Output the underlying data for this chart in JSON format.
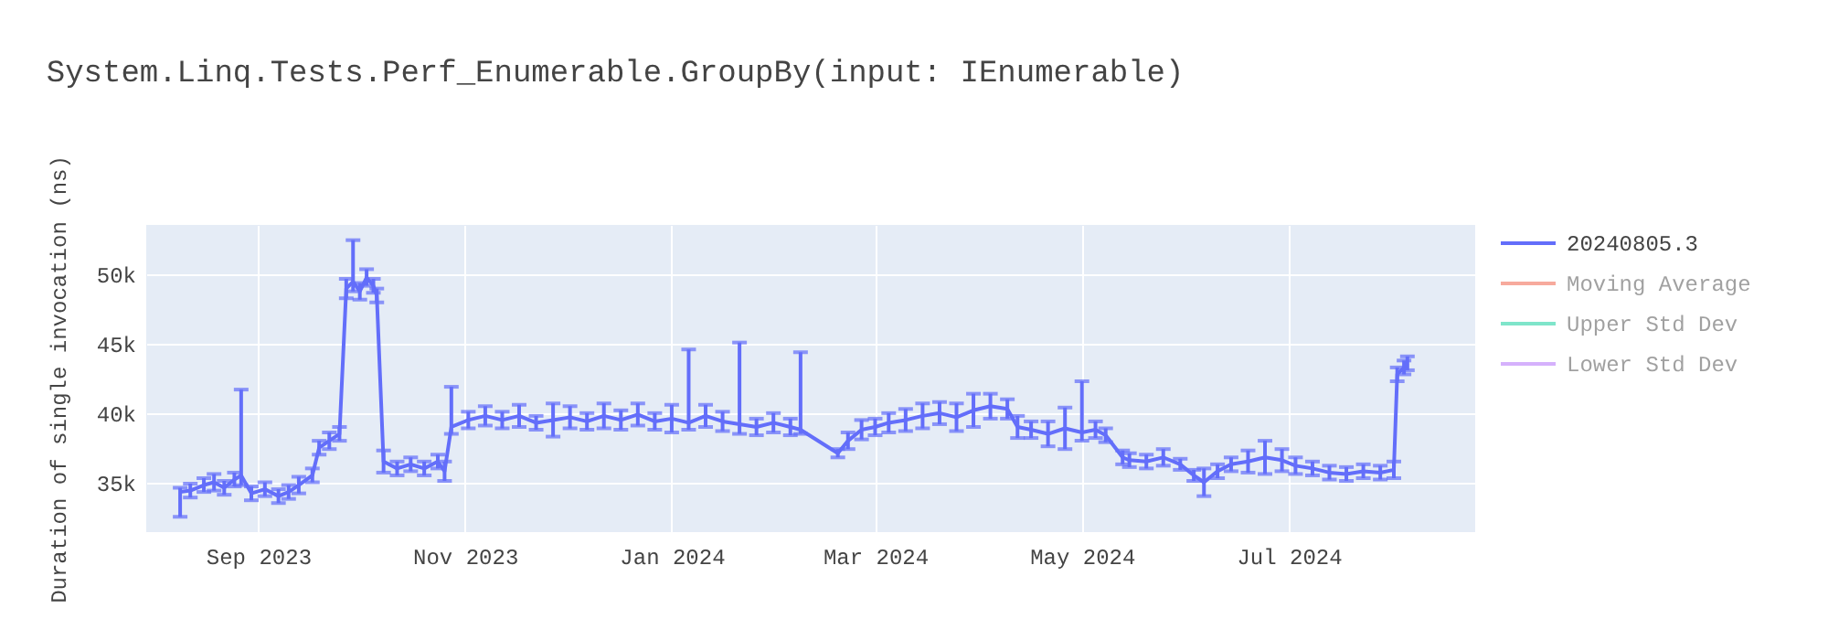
{
  "chart_data": {
    "type": "line",
    "title": "System.Linq.Tests.Perf_Enumerable.GroupBy(input: IEnumerable)",
    "ylabel": "Duration of single invocation (ns)",
    "x": [
      "2023-08-09",
      "2023-08-12",
      "2023-08-16",
      "2023-08-19",
      "2023-08-22",
      "2023-08-25",
      "2023-08-27",
      "2023-08-30",
      "2023-09-03",
      "2023-09-07",
      "2023-09-10",
      "2023-09-13",
      "2023-09-17",
      "2023-09-19",
      "2023-09-22",
      "2023-09-25",
      "2023-09-27",
      "2023-09-29",
      "2023-10-01",
      "2023-10-03",
      "2023-10-05",
      "2023-10-06",
      "2023-10-08",
      "2023-10-12",
      "2023-10-16",
      "2023-10-20",
      "2023-10-24",
      "2023-10-26",
      "2023-10-28",
      "2023-11-02",
      "2023-11-07",
      "2023-11-12",
      "2023-11-17",
      "2023-11-22",
      "2023-11-27",
      "2023-12-02",
      "2023-12-07",
      "2023-12-12",
      "2023-12-17",
      "2023-12-22",
      "2023-12-27",
      "2024-01-01",
      "2024-01-06",
      "2024-01-11",
      "2024-01-16",
      "2024-01-21",
      "2024-01-26",
      "2024-01-31",
      "2024-02-05",
      "2024-02-08",
      "2024-02-19",
      "2024-02-22",
      "2024-02-26",
      "2024-03-01",
      "2024-03-05",
      "2024-03-10",
      "2024-03-15",
      "2024-03-20",
      "2024-03-25",
      "2024-03-30",
      "2024-04-04",
      "2024-04-09",
      "2024-04-12",
      "2024-04-16",
      "2024-04-21",
      "2024-04-26",
      "2024-05-01",
      "2024-05-05",
      "2024-05-08",
      "2024-05-13",
      "2024-05-15",
      "2024-05-20",
      "2024-05-25",
      "2024-05-30",
      "2024-06-03",
      "2024-06-06",
      "2024-06-10",
      "2024-06-14",
      "2024-06-19",
      "2024-06-24",
      "2024-06-29",
      "2024-07-03",
      "2024-07-08",
      "2024-07-13",
      "2024-07-18",
      "2024-07-23",
      "2024-07-28",
      "2024-08-01",
      "2024-08-02",
      "2024-08-04",
      "2024-08-05"
    ],
    "series": [
      {
        "name": "20240805.3",
        "color": "#636efa",
        "values": [
          34300,
          34400,
          34800,
          35000,
          34600,
          35200,
          35500,
          34200,
          34500,
          34000,
          34300,
          34800,
          35500,
          37500,
          38000,
          38500,
          49000,
          49500,
          48800,
          49800,
          49200,
          48500,
          36500,
          36000,
          36300,
          36000,
          36500,
          35800,
          39000,
          39500,
          39800,
          39500,
          39800,
          39300,
          39500,
          39700,
          39400,
          39800,
          39500,
          39900,
          39400,
          39600,
          39300,
          39800,
          39400,
          39200,
          39000,
          39300,
          39000,
          38800,
          37100,
          38000,
          38800,
          39000,
          39300,
          39500,
          39800,
          40000,
          39700,
          40200,
          40500,
          40300,
          39000,
          38800,
          38500,
          38900,
          38600,
          38800,
          38400,
          36800,
          36600,
          36500,
          36800,
          36300,
          35500,
          35000,
          35800,
          36300,
          36500,
          36800,
          36600,
          36200,
          36000,
          35700,
          35600,
          35800,
          35700,
          35900,
          42800,
          43300,
          43600
        ],
        "errors": [
          [
            32500,
            34600
          ],
          500,
          500,
          600,
          500,
          500,
          [
            34800,
            41700
          ],
          500,
          500,
          500,
          500,
          600,
          500,
          500,
          600,
          500,
          700,
          [
            48800,
            52500
          ],
          600,
          600,
          500,
          500,
          800,
          500,
          500,
          500,
          500,
          700,
          [
            38500,
            41900
          ],
          600,
          700,
          600,
          800,
          500,
          1200,
          800,
          600,
          900,
          700,
          800,
          600,
          1000,
          [
            38800,
            44600
          ],
          800,
          700,
          [
            38500,
            45100
          ],
          600,
          700,
          600,
          [
            38500,
            44400
          ],
          300,
          600,
          700,
          600,
          700,
          800,
          900,
          800,
          1000,
          1200,
          900,
          700,
          800,
          600,
          900,
          1500,
          [
            38000,
            42300
          ],
          600,
          500,
          500,
          500,
          500,
          600,
          400,
          400,
          1000,
          500,
          500,
          800,
          1200,
          800,
          600,
          500,
          500,
          500,
          500,
          500,
          600,
          500,
          500,
          500
        ],
        "marker": "none"
      },
      {
        "name": "Moving Average",
        "color": "#ef553b",
        "values": [
          null,
          null,
          null,
          null,
          null,
          null,
          null,
          null,
          null,
          null,
          null,
          null,
          null,
          null,
          null,
          null,
          null,
          null,
          null,
          null,
          null,
          null,
          null,
          null,
          null,
          null,
          null,
          null,
          null,
          null,
          null,
          null,
          null,
          null,
          null,
          null,
          null,
          null,
          null,
          null,
          null,
          null,
          null,
          null,
          null,
          null,
          null,
          null,
          null,
          null,
          null,
          null,
          null,
          null,
          null,
          null,
          null,
          null,
          null,
          null,
          null,
          null,
          null,
          null,
          null,
          null,
          null,
          null,
          null,
          null,
          null,
          null,
          null,
          null,
          null,
          null,
          null,
          null,
          null,
          null,
          null,
          null,
          null,
          null,
          null,
          null,
          null,
          null,
          null,
          null,
          null
        ]
      },
      {
        "name": "Upper Std Dev",
        "color": "#00cc96",
        "values": [
          null,
          null,
          null,
          null,
          null,
          null,
          null,
          null,
          null,
          null,
          null,
          null,
          null,
          null,
          null,
          null,
          null,
          null,
          null,
          null,
          null,
          null,
          null,
          null,
          null,
          null,
          null,
          null,
          null,
          null,
          null,
          null,
          null,
          null,
          null,
          null,
          null,
          null,
          null,
          null,
          null,
          null,
          null,
          null,
          null,
          null,
          null,
          null,
          null,
          null,
          null,
          null,
          null,
          null,
          null,
          null,
          null,
          null,
          null,
          null,
          null,
          null,
          null,
          null,
          null,
          null,
          null,
          null,
          null,
          null,
          null,
          null,
          null,
          null,
          null,
          null,
          null,
          null,
          null,
          null,
          null,
          null,
          null,
          null,
          null,
          null,
          null,
          null,
          null,
          null,
          null
        ]
      },
      {
        "name": "Lower Std Dev",
        "color": "#ab63fa",
        "values": [
          null,
          null,
          null,
          null,
          null,
          null,
          null,
          null,
          null,
          null,
          null,
          null,
          null,
          null,
          null,
          null,
          null,
          null,
          null,
          null,
          null,
          null,
          null,
          null,
          null,
          null,
          null,
          null,
          null,
          null,
          null,
          null,
          null,
          null,
          null,
          null,
          null,
          null,
          null,
          null,
          null,
          null,
          null,
          null,
          null,
          null,
          null,
          null,
          null,
          null,
          null,
          null,
          null,
          null,
          null,
          null,
          null,
          null,
          null,
          null,
          null,
          null,
          null,
          null,
          null,
          null,
          null,
          null,
          null,
          null,
          null,
          null,
          null,
          null,
          null,
          null,
          null,
          null,
          null,
          null,
          null,
          null,
          null,
          null,
          null,
          null,
          null,
          null,
          null,
          null,
          null
        ]
      }
    ],
    "xlim": [
      "2023-07-30",
      "2024-08-25"
    ],
    "xticks": [
      {
        "value": "2023-09-01",
        "label": "Sep 2023"
      },
      {
        "value": "2023-11-01",
        "label": "Nov 2023"
      },
      {
        "value": "2024-01-01",
        "label": "Jan 2024"
      },
      {
        "value": "2024-03-01",
        "label": "Mar 2024"
      },
      {
        "value": "2024-05-01",
        "label": "May 2024"
      },
      {
        "value": "2024-07-01",
        "label": "Jul 2024"
      }
    ],
    "ylim": [
      31400,
      53600
    ],
    "yticks": [
      {
        "value": 35000,
        "label": "35k"
      },
      {
        "value": 40000,
        "label": "40k"
      },
      {
        "value": 45000,
        "label": "45k"
      },
      {
        "value": 50000,
        "label": "50k"
      }
    ],
    "grid": true,
    "legend": "right",
    "line_style": "solid"
  }
}
